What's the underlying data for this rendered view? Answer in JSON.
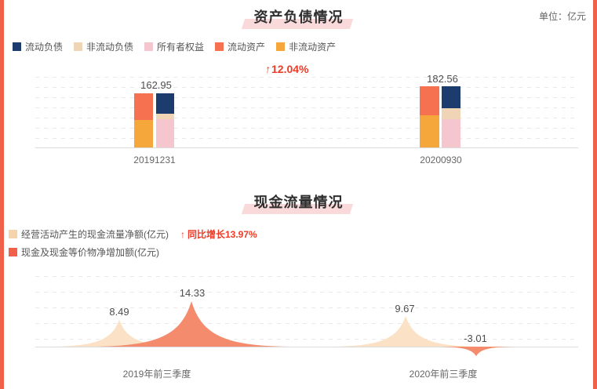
{
  "balance_section": {
    "title": "资产负债情况",
    "unit_label": "单位：亿元",
    "legend": [
      {
        "label": "流动负债",
        "color": "#1b3c6d"
      },
      {
        "label": "非流动负债",
        "color": "#efd4b5"
      },
      {
        "label": "所有者权益",
        "color": "#f5c6cd"
      },
      {
        "label": "流动资产",
        "color": "#f5714f"
      },
      {
        "label": "非流动资产",
        "color": "#f5a73c"
      }
    ],
    "growth_annotation": {
      "arrow": "↑",
      "text": "12.04%"
    }
  },
  "cashflow_section": {
    "title": "现金流量情况",
    "legend": [
      {
        "label": "经营活动产生的现金流量净额(亿元)",
        "color": "#f5d3ab"
      },
      {
        "label": "现金及现金等价物净增加额(亿元)",
        "color": "#f0604a"
      }
    ],
    "growth_annotation": {
      "arrow": "↑",
      "text": "同比增长13.97%"
    }
  },
  "colors": {
    "page_border": "#f0614c",
    "annotation_red": "#ee3a26",
    "title_highlight": "#fad9da",
    "gridline": "#e9e9e9",
    "axis": "#dcdcdc"
  },
  "chart_data": [
    {
      "type": "bar",
      "subtype": "grouped-stacked",
      "title": "资产负债情况",
      "unit": "亿元",
      "categories": [
        "20191231",
        "20200930"
      ],
      "total_labels": [
        "162.95",
        "182.56"
      ],
      "totals": [
        162.95,
        182.56
      ],
      "growth_pct_annotation": "12.04%",
      "segment_values_estimated_from_pixels": true,
      "grid": "dashed-horizontal",
      "series": [
        {
          "name": "流动资产",
          "stack": "assets",
          "color": "#f5714f",
          "values": [
            80.6,
            85.9
          ]
        },
        {
          "name": "非流动资产",
          "stack": "assets",
          "color": "#f5a73c",
          "values": [
            82.4,
            96.7
          ]
        },
        {
          "name": "流动负债",
          "stack": "liabilities_equity",
          "color": "#1b3c6d",
          "values": [
            62.6,
            63.9
          ]
        },
        {
          "name": "非流动负债",
          "stack": "liabilities_equity",
          "color": "#efd4b5",
          "values": [
            15.7,
            33.7
          ]
        },
        {
          "name": "所有者权益",
          "stack": "liabilities_equity",
          "color": "#f5c6cd",
          "values": [
            84.7,
            85.0
          ]
        }
      ]
    },
    {
      "type": "area",
      "subtype": "peak-spikes",
      "title": "现金流量情况",
      "categories": [
        "2019年前三季度",
        "2020年前三季度"
      ],
      "yoy_growth_annotation": "同比增长13.97%",
      "grid": "dashed-horizontal",
      "series": [
        {
          "name": "经营活动产生的现金流量净额(亿元)",
          "color": "#fbe2c6",
          "values": [
            8.49,
            9.67
          ]
        },
        {
          "name": "现金及现金等价物净增加额(亿元)",
          "color": "#f48b6d",
          "values": [
            14.33,
            -3.01
          ]
        }
      ]
    }
  ]
}
